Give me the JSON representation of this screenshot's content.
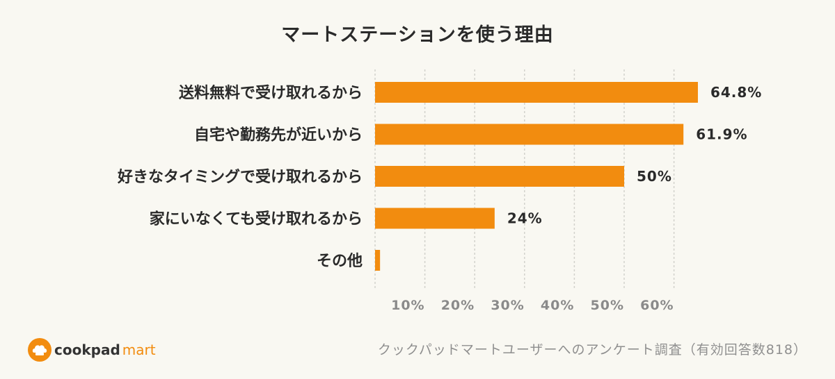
{
  "chart_data": {
    "type": "bar",
    "orientation": "horizontal",
    "title": "マートステーションを使う理由",
    "categories": [
      "送料無料で受け取れるから",
      "自宅や勤務先が近いから",
      "好きなタイミングで受け取れるから",
      "家にいなくても受け取れるから",
      "その他"
    ],
    "values": [
      64.8,
      61.9,
      50,
      24,
      1
    ],
    "value_labels": [
      "64.8%",
      "61.9%",
      "50%",
      "24%",
      ""
    ],
    "xlim": [
      0,
      70
    ],
    "ticks": [
      10,
      20,
      30,
      40,
      50,
      60
    ],
    "tick_labels": [
      "10%",
      "20%",
      "30%",
      "40%",
      "50%",
      "60%"
    ],
    "grid": true,
    "bar_color": "#f28c0f"
  },
  "footer": {
    "logo_text_1": "cookpad",
    "logo_text_2": "mart",
    "source_note": "クックパッドマートユーザーへのアンケート調査（有効回答数818）"
  },
  "colors": {
    "background": "#f9f8f2",
    "accent": "#f28c0f",
    "text": "#2a2a2a",
    "muted": "#8f8f8f"
  },
  "icons": {
    "logo": "chef-hat-icon"
  }
}
